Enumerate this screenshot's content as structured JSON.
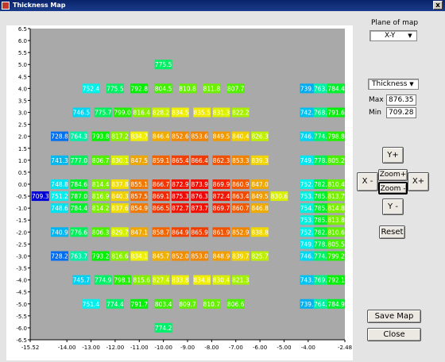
{
  "window": {
    "title": "Thickness Map",
    "close_glyph": "x"
  },
  "controls": {
    "plane_label": "Plane of map",
    "plane_value": "X-Y",
    "measure_value": "Thickness",
    "max_label": "Max",
    "max_value": "876.35",
    "min_label": "Min",
    "min_value": "709.28",
    "btn_yplus": "Y+",
    "btn_yminus": "Y -",
    "btn_xminus": "X -",
    "btn_xplus": "X+",
    "btn_zoomin": "Zoom+",
    "btn_zoomout": "Zoom -",
    "btn_reset": "Reset",
    "btn_save": "Save Map",
    "btn_close": "Close"
  },
  "colors": {
    "plot_bg": "#a9a9a9",
    "low": "#0000cc",
    "high": "#ff0000"
  },
  "chart_data": {
    "type": "heatmap",
    "title": "",
    "xlim": [
      -15.52,
      -2.48
    ],
    "ylim": [
      -6.5,
      6.5
    ],
    "xticks": [
      "-15.52",
      "-14.00",
      "-13.00",
      "-12.00",
      "-11.00",
      "-10.00",
      "-9.00",
      "-8.00",
      "-7.00",
      "-6.00",
      "-5.00",
      "-4.00",
      "-2.48"
    ],
    "yticks": [
      "6.5",
      "6.0",
      "5.5",
      "5.0",
      "4.5",
      "4.0",
      "3.5",
      "3.0",
      "2.5",
      "2.0",
      "1.5",
      "1.0",
      "0.5",
      "0.0",
      "-0.5",
      "-1.0",
      "-1.5",
      "-2.0",
      "-2.5",
      "-3.0",
      "-3.5",
      "-4.0",
      "-4.5",
      "-5.0",
      "-5.5",
      "-6.0",
      "-6.5"
    ],
    "min": 709.28,
    "max": 876.35,
    "points": [
      {
        "x": -10,
        "y": 5,
        "v": "775.5"
      },
      {
        "x": -13,
        "y": 4,
        "v": "752.4"
      },
      {
        "x": -12,
        "y": 4,
        "v": "775.5"
      },
      {
        "x": -11,
        "y": 4,
        "v": "792.8"
      },
      {
        "x": -10,
        "y": 4,
        "v": "804.5"
      },
      {
        "x": -9,
        "y": 4,
        "v": "810.8"
      },
      {
        "x": -8,
        "y": 4,
        "v": "811.8"
      },
      {
        "x": -7,
        "y": 4,
        "v": "807.7"
      },
      {
        "x": -13.4,
        "y": 3,
        "v": "746.5"
      },
      {
        "x": -12.5,
        "y": 3,
        "v": "775.7"
      },
      {
        "x": -11.7,
        "y": 3,
        "v": "799.0"
      },
      {
        "x": -10.9,
        "y": 3,
        "v": "816.4"
      },
      {
        "x": -10.1,
        "y": 3,
        "v": "828.2"
      },
      {
        "x": -9.3,
        "y": 3,
        "v": "834.5"
      },
      {
        "x": -8.4,
        "y": 3,
        "v": "835.5"
      },
      {
        "x": -7.6,
        "y": 3,
        "v": "831.3"
      },
      {
        "x": -6.8,
        "y": 3,
        "v": "822.2"
      },
      {
        "x": -14.3,
        "y": 2,
        "v": "728.8"
      },
      {
        "x": -13.5,
        "y": 2,
        "v": "764.3"
      },
      {
        "x": -12.6,
        "y": 2,
        "v": "793.8"
      },
      {
        "x": -11.8,
        "y": 2,
        "v": "817.2"
      },
      {
        "x": -11.0,
        "y": 2,
        "v": "834.7"
      },
      {
        "x": -10.1,
        "y": 2,
        "v": "846.4"
      },
      {
        "x": -9.3,
        "y": 2,
        "v": "852.6"
      },
      {
        "x": -8.5,
        "y": 2,
        "v": "853.6"
      },
      {
        "x": -7.6,
        "y": 2,
        "v": "849.5"
      },
      {
        "x": -6.8,
        "y": 2,
        "v": "840.4"
      },
      {
        "x": -6.0,
        "y": 2,
        "v": "826.3"
      },
      {
        "x": -14.3,
        "y": 1,
        "v": "741.3"
      },
      {
        "x": -13.5,
        "y": 1,
        "v": "777.0"
      },
      {
        "x": -12.6,
        "y": 1,
        "v": "806.7"
      },
      {
        "x": -11.8,
        "y": 1,
        "v": "830.1"
      },
      {
        "x": -11.0,
        "y": 1,
        "v": "847.5"
      },
      {
        "x": -10.1,
        "y": 1,
        "v": "859.1"
      },
      {
        "x": -9.3,
        "y": 1,
        "v": "865.4"
      },
      {
        "x": -8.5,
        "y": 1,
        "v": "866.4"
      },
      {
        "x": -7.6,
        "y": 1,
        "v": "862.3"
      },
      {
        "x": -6.8,
        "y": 1,
        "v": "853.3"
      },
      {
        "x": -6.0,
        "y": 1,
        "v": "839.3"
      },
      {
        "x": -14.3,
        "y": 0,
        "v": "748.8"
      },
      {
        "x": -13.5,
        "y": 0,
        "v": "784.6"
      },
      {
        "x": -12.6,
        "y": 0,
        "v": "814.4"
      },
      {
        "x": -11.8,
        "y": 0,
        "v": "837.8"
      },
      {
        "x": -11.0,
        "y": 0,
        "v": "855.1"
      },
      {
        "x": -10.1,
        "y": 0,
        "v": "866.7"
      },
      {
        "x": -9.3,
        "y": 0,
        "v": "872.9"
      },
      {
        "x": -8.5,
        "y": 0,
        "v": "873.9"
      },
      {
        "x": -7.6,
        "y": 0,
        "v": "869.9"
      },
      {
        "x": -6.8,
        "y": 0,
        "v": "860.9"
      },
      {
        "x": -6.0,
        "y": 0,
        "v": "847.0"
      },
      {
        "x": -15.1,
        "y": -0.5,
        "v": "709.3"
      },
      {
        "x": -14.3,
        "y": -0.5,
        "v": "751.2"
      },
      {
        "x": -13.5,
        "y": -0.5,
        "v": "787.0"
      },
      {
        "x": -12.6,
        "y": -0.5,
        "v": "816.9"
      },
      {
        "x": -11.8,
        "y": -0.5,
        "v": "840.3"
      },
      {
        "x": -11.0,
        "y": -0.5,
        "v": "857.5"
      },
      {
        "x": -10.1,
        "y": -0.5,
        "v": "869.1"
      },
      {
        "x": -9.3,
        "y": -0.5,
        "v": "875.3"
      },
      {
        "x": -8.5,
        "y": -0.5,
        "v": "876.3"
      },
      {
        "x": -7.6,
        "y": -0.5,
        "v": "872.4"
      },
      {
        "x": -6.8,
        "y": -0.5,
        "v": "863.4"
      },
      {
        "x": -6.0,
        "y": -0.5,
        "v": "849.5"
      },
      {
        "x": -5.2,
        "y": -0.5,
        "v": "830.6"
      },
      {
        "x": -14.3,
        "y": -1,
        "v": "748.6"
      },
      {
        "x": -13.5,
        "y": -1,
        "v": "784.4"
      },
      {
        "x": -12.6,
        "y": -1,
        "v": "814.2"
      },
      {
        "x": -11.8,
        "y": -1,
        "v": "837.6"
      },
      {
        "x": -11.0,
        "y": -1,
        "v": "854.9"
      },
      {
        "x": -10.1,
        "y": -1,
        "v": "866.5"
      },
      {
        "x": -9.3,
        "y": -1,
        "v": "872.7"
      },
      {
        "x": -8.5,
        "y": -1,
        "v": "873.7"
      },
      {
        "x": -7.6,
        "y": -1,
        "v": "869.7"
      },
      {
        "x": -6.8,
        "y": -1,
        "v": "860.7"
      },
      {
        "x": -6.0,
        "y": -1,
        "v": "846.8"
      },
      {
        "x": -14.3,
        "y": -2,
        "v": "740.9"
      },
      {
        "x": -13.5,
        "y": -2,
        "v": "776.6"
      },
      {
        "x": -12.6,
        "y": -2,
        "v": "806.3"
      },
      {
        "x": -11.8,
        "y": -2,
        "v": "829.7"
      },
      {
        "x": -11.0,
        "y": -2,
        "v": "847.1"
      },
      {
        "x": -10.1,
        "y": -2,
        "v": "858.7"
      },
      {
        "x": -9.3,
        "y": -2,
        "v": "864.9"
      },
      {
        "x": -8.5,
        "y": -2,
        "v": "865.9"
      },
      {
        "x": -7.6,
        "y": -2,
        "v": "861.9"
      },
      {
        "x": -6.8,
        "y": -2,
        "v": "852.9"
      },
      {
        "x": -6.0,
        "y": -2,
        "v": "838.8"
      },
      {
        "x": -14.3,
        "y": -3,
        "v": "728.2"
      },
      {
        "x": -13.5,
        "y": -3,
        "v": "763.7"
      },
      {
        "x": -12.6,
        "y": -3,
        "v": "793.2"
      },
      {
        "x": -11.8,
        "y": -3,
        "v": "816.6"
      },
      {
        "x": -11.0,
        "y": -3,
        "v": "834.1"
      },
      {
        "x": -10.1,
        "y": -3,
        "v": "845.7"
      },
      {
        "x": -9.3,
        "y": -3,
        "v": "852.0"
      },
      {
        "x": -8.5,
        "y": -3,
        "v": "853.0"
      },
      {
        "x": -7.6,
        "y": -3,
        "v": "848.9"
      },
      {
        "x": -6.8,
        "y": -3,
        "v": "839.7"
      },
      {
        "x": -6.0,
        "y": -3,
        "v": "825.7"
      },
      {
        "x": -13.4,
        "y": -4,
        "v": "745.7"
      },
      {
        "x": -12.5,
        "y": -4,
        "v": "774.9"
      },
      {
        "x": -11.7,
        "y": -4,
        "v": "798.1"
      },
      {
        "x": -10.9,
        "y": -4,
        "v": "815.6"
      },
      {
        "x": -10.1,
        "y": -4,
        "v": "827.4"
      },
      {
        "x": -9.3,
        "y": -4,
        "v": "833.8"
      },
      {
        "x": -8.4,
        "y": -4,
        "v": "834.8"
      },
      {
        "x": -7.6,
        "y": -4,
        "v": "830.4"
      },
      {
        "x": -6.8,
        "y": -4,
        "v": "821.3"
      },
      {
        "x": -13,
        "y": -5,
        "v": "751.4"
      },
      {
        "x": -12,
        "y": -5,
        "v": "774.4"
      },
      {
        "x": -11,
        "y": -5,
        "v": "791.7"
      },
      {
        "x": -10,
        "y": -5,
        "v": "803.4"
      },
      {
        "x": -9,
        "y": -5,
        "v": "809.7"
      },
      {
        "x": -8,
        "y": -5,
        "v": "810.7"
      },
      {
        "x": -7,
        "y": -5,
        "v": "806.6"
      },
      {
        "x": -10,
        "y": -6,
        "v": "774.2"
      },
      {
        "x": -3.98,
        "y": 4,
        "v": "739.2"
      },
      {
        "x": -3.41,
        "y": 4,
        "v": "763.7"
      },
      {
        "x": -2.84,
        "y": 4,
        "v": "784.4"
      },
      {
        "x": -3.98,
        "y": 3,
        "v": "742.7"
      },
      {
        "x": -3.41,
        "y": 3,
        "v": "768.7"
      },
      {
        "x": -2.84,
        "y": 3,
        "v": "791.6"
      },
      {
        "x": -3.98,
        "y": 2,
        "v": "746.2"
      },
      {
        "x": -3.41,
        "y": 2,
        "v": "774.7"
      },
      {
        "x": -2.84,
        "y": 2,
        "v": "798.8"
      },
      {
        "x": -3.98,
        "y": 1,
        "v": "749.4"
      },
      {
        "x": -3.41,
        "y": 1,
        "v": "778.0"
      },
      {
        "x": -2.84,
        "y": 1,
        "v": "805.2"
      },
      {
        "x": -3.98,
        "y": 0,
        "v": "752.0"
      },
      {
        "x": -3.41,
        "y": 0,
        "v": "782.0"
      },
      {
        "x": -2.84,
        "y": 0,
        "v": "810.4"
      },
      {
        "x": -3.98,
        "y": -0.5,
        "v": "753.7"
      },
      {
        "x": -3.41,
        "y": -0.5,
        "v": "785.3"
      },
      {
        "x": -2.84,
        "y": -0.5,
        "v": "813.7"
      },
      {
        "x": -3.98,
        "y": -1,
        "v": "754.3"
      },
      {
        "x": -3.41,
        "y": -1,
        "v": "785.4"
      },
      {
        "x": -2.84,
        "y": -1,
        "v": "814.8"
      },
      {
        "x": -3.98,
        "y": -1.5,
        "v": "753.8"
      },
      {
        "x": -3.41,
        "y": -1.5,
        "v": "785.1"
      },
      {
        "x": -2.84,
        "y": -1.5,
        "v": "813.8"
      },
      {
        "x": -3.98,
        "y": -2,
        "v": "752.2"
      },
      {
        "x": -3.41,
        "y": -2,
        "v": "782.8"
      },
      {
        "x": -2.84,
        "y": -2,
        "v": "810.6"
      },
      {
        "x": -3.98,
        "y": -2.5,
        "v": "749.7"
      },
      {
        "x": -3.41,
        "y": -2.5,
        "v": "778.6"
      },
      {
        "x": -2.84,
        "y": -2.5,
        "v": "805.5"
      },
      {
        "x": -3.98,
        "y": -3,
        "v": "746.6"
      },
      {
        "x": -3.41,
        "y": -3,
        "v": "774.7"
      },
      {
        "x": -2.84,
        "y": -3,
        "v": "799.2"
      },
      {
        "x": -3.98,
        "y": -4,
        "v": "743.1"
      },
      {
        "x": -3.41,
        "y": -4,
        "v": "769.7"
      },
      {
        "x": -2.84,
        "y": -4,
        "v": "792.1"
      },
      {
        "x": -3.98,
        "y": -5,
        "v": "739.7"
      },
      {
        "x": -3.41,
        "y": -5,
        "v": "764.7"
      },
      {
        "x": -2.84,
        "y": -5,
        "v": "784.9"
      }
    ]
  }
}
